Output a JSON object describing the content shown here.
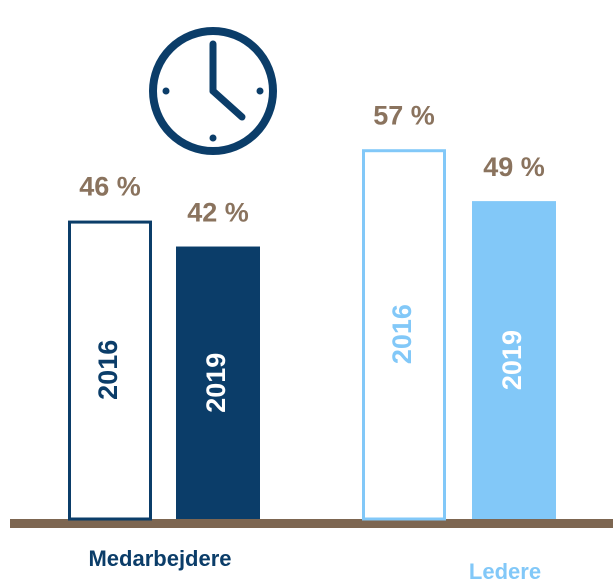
{
  "chart_data": {
    "type": "bar",
    "categories": [
      "Medarbejdere",
      "Ledere"
    ],
    "colors": [
      "#0b3d69",
      "#82c8f8"
    ],
    "series": [
      {
        "name": "2016",
        "fill": false,
        "values": [
          46,
          57
        ],
        "value_labels": [
          "46 %",
          "57 %"
        ]
      },
      {
        "name": "2019",
        "fill": true,
        "values": [
          42,
          49
        ],
        "value_labels": [
          "42 %",
          "49 %"
        ]
      }
    ],
    "label_color": "#8a735e",
    "ylim": [
      0,
      80
    ]
  }
}
